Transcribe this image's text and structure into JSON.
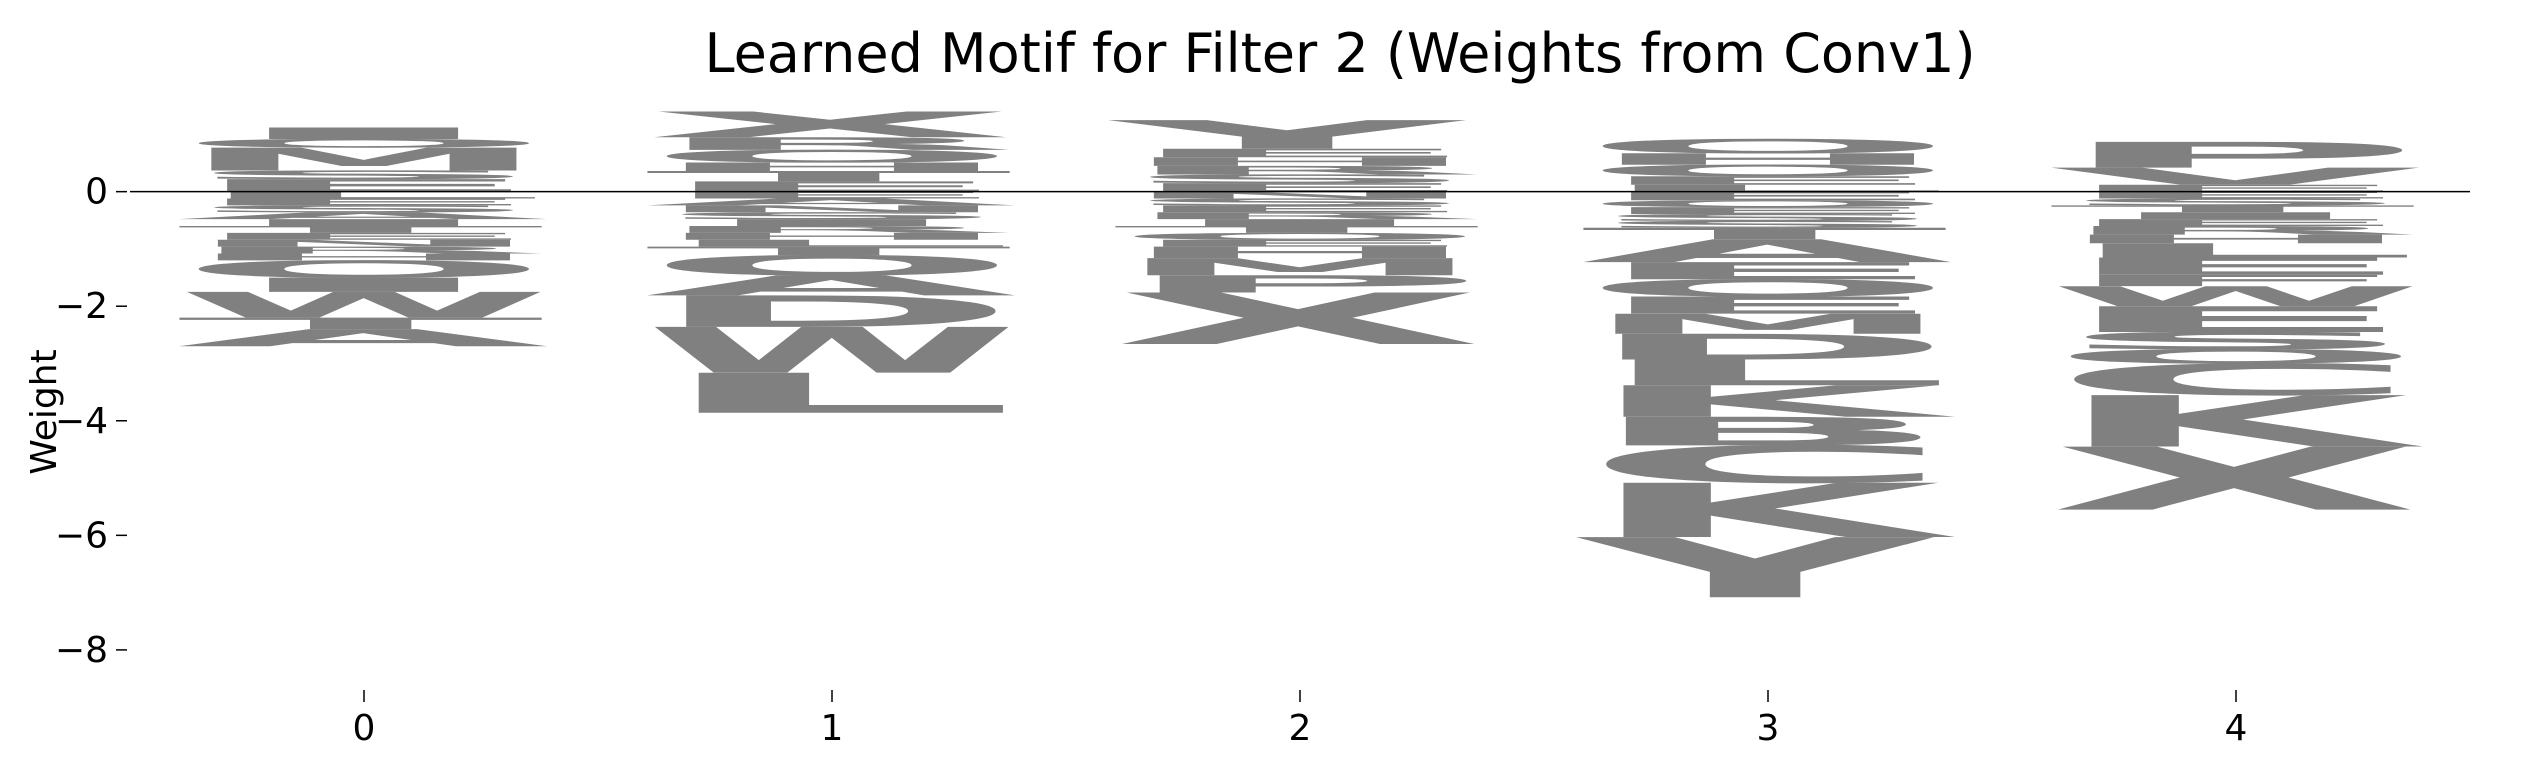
{
  "chart_data": {
    "type": "sequence-logo",
    "title": "Learned Motif for Filter 2 (Weights from Conv1)",
    "xlabel": "",
    "ylabel": "Weight",
    "x_ticks": [
      "0",
      "1",
      "2",
      "3",
      "4"
    ],
    "y_ticks": [
      {
        "value": 0,
        "label": "0"
      },
      {
        "value": -2,
        "label": "−2"
      },
      {
        "value": -4,
        "label": "−4"
      },
      {
        "value": -6,
        "label": "−6"
      },
      {
        "value": -8,
        "label": "−8"
      }
    ],
    "ylim": [
      -8.7,
      1.6
    ],
    "xlim": [
      -0.5,
      4.5
    ],
    "letter_color": "#808080",
    "baseline": 0,
    "positions": [
      {
        "position": 0,
        "positive": [
          {
            "letter": "E",
            "height": 0.22
          },
          {
            "letter": "S",
            "height": 0.15
          },
          {
            "letter": "M",
            "height": 0.4
          },
          {
            "letter": "O",
            "height": 0.15
          },
          {
            "letter": "I",
            "height": 0.2
          }
        ],
        "negative": [
          {
            "letter": "L",
            "height": 0.12
          },
          {
            "letter": "E",
            "height": 0.12
          },
          {
            "letter": "S",
            "height": 0.12
          },
          {
            "letter": "A",
            "height": 0.12
          },
          {
            "letter": "I",
            "height": 0.12
          },
          {
            "letter": "T",
            "height": 0.12
          },
          {
            "letter": "E",
            "height": 0.12
          },
          {
            "letter": "N",
            "height": 0.12
          },
          {
            "letter": "R",
            "height": 0.12
          },
          {
            "letter": "H",
            "height": 0.12
          },
          {
            "letter": "O",
            "height": 0.3
          },
          {
            "letter": "I",
            "height": 0.25
          },
          {
            "letter": "W",
            "height": 0.45
          },
          {
            "letter": "T",
            "height": 0.2
          },
          {
            "letter": "A",
            "height": 0.3
          }
        ]
      },
      {
        "position": 1,
        "positive": [
          {
            "letter": "E",
            "height": 0.18
          },
          {
            "letter": "T",
            "height": 0.18
          },
          {
            "letter": "H",
            "height": 0.15
          },
          {
            "letter": "O",
            "height": 0.22
          },
          {
            "letter": "R",
            "height": 0.22
          },
          {
            "letter": "X",
            "height": 0.45
          }
        ],
        "negative": [
          {
            "letter": "E",
            "height": 0.12
          },
          {
            "letter": "A",
            "height": 0.12
          },
          {
            "letter": "N",
            "height": 0.12
          },
          {
            "letter": "S",
            "height": 0.12
          },
          {
            "letter": "I",
            "height": 0.12
          },
          {
            "letter": "R",
            "height": 0.12
          },
          {
            "letter": "H",
            "height": 0.12
          },
          {
            "letter": "L",
            "height": 0.12
          },
          {
            "letter": "T",
            "height": 0.15
          },
          {
            "letter": "O",
            "height": 0.35
          },
          {
            "letter": "A",
            "height": 0.35
          },
          {
            "letter": "D",
            "height": 0.55
          },
          {
            "letter": "W",
            "height": 0.8
          },
          {
            "letter": "L",
            "height": 0.7
          }
        ]
      },
      {
        "position": 2,
        "positive": [
          {
            "letter": "E",
            "height": 0.15
          },
          {
            "letter": "S",
            "height": 0.15
          },
          {
            "letter": "R",
            "height": 0.15
          },
          {
            "letter": "H",
            "height": 0.15
          },
          {
            "letter": "E",
            "height": 0.15
          },
          {
            "letter": "Y",
            "height": 0.5
          }
        ],
        "negative": [
          {
            "letter": "N",
            "height": 0.12
          },
          {
            "letter": "S",
            "height": 0.12
          },
          {
            "letter": "E",
            "height": 0.12
          },
          {
            "letter": "R",
            "height": 0.12
          },
          {
            "letter": "I",
            "height": 0.12
          },
          {
            "letter": "T",
            "height": 0.12
          },
          {
            "letter": "O",
            "height": 0.12
          },
          {
            "letter": "E",
            "height": 0.12
          },
          {
            "letter": "H",
            "height": 0.2
          },
          {
            "letter": "M",
            "height": 0.3
          },
          {
            "letter": "P",
            "height": 0.3
          },
          {
            "letter": "X",
            "height": 0.9
          }
        ]
      },
      {
        "position": 3,
        "positive": [
          {
            "letter": "L",
            "height": 0.12
          },
          {
            "letter": "E",
            "height": 0.15
          },
          {
            "letter": "O",
            "height": 0.2
          },
          {
            "letter": "H",
            "height": 0.2
          },
          {
            "letter": "O",
            "height": 0.25
          }
        ],
        "negative": [
          {
            "letter": "E",
            "height": 0.15
          },
          {
            "letter": "O",
            "height": 0.12
          },
          {
            "letter": "E",
            "height": 0.12
          },
          {
            "letter": "S",
            "height": 0.12
          },
          {
            "letter": "S",
            "height": 0.12
          },
          {
            "letter": "T",
            "height": 0.2
          },
          {
            "letter": "A",
            "height": 0.4
          },
          {
            "letter": "E",
            "height": 0.3
          },
          {
            "letter": "O",
            "height": 0.3
          },
          {
            "letter": "E",
            "height": 0.3
          },
          {
            "letter": "M",
            "height": 0.35
          },
          {
            "letter": "D",
            "height": 0.45
          },
          {
            "letter": "L",
            "height": 0.45
          },
          {
            "letter": "K",
            "height": 0.55
          },
          {
            "letter": "B",
            "height": 0.5
          },
          {
            "letter": "C",
            "height": 0.65
          },
          {
            "letter": "K",
            "height": 0.95
          },
          {
            "letter": "Y",
            "height": 1.05
          }
        ]
      },
      {
        "position": 4,
        "positive": [
          {
            "letter": "E",
            "height": 0.12
          },
          {
            "letter": "V",
            "height": 0.3
          },
          {
            "letter": "P",
            "height": 0.45
          }
        ],
        "negative": [
          {
            "letter": "E",
            "height": 0.12
          },
          {
            "letter": "S",
            "height": 0.12
          },
          {
            "letter": "T",
            "height": 0.12
          },
          {
            "letter": "I",
            "height": 0.12
          },
          {
            "letter": "E",
            "height": 0.12
          },
          {
            "letter": "R",
            "height": 0.15
          },
          {
            "letter": "H",
            "height": 0.15
          },
          {
            "letter": "L",
            "height": 0.25
          },
          {
            "letter": "E",
            "height": 0.3
          },
          {
            "letter": "F",
            "height": 0.2
          },
          {
            "letter": "W",
            "height": 0.35
          },
          {
            "letter": "E",
            "height": 0.45
          },
          {
            "letter": "S",
            "height": 0.3
          },
          {
            "letter": "O",
            "height": 0.25
          },
          {
            "letter": "C",
            "height": 0.55
          },
          {
            "letter": "K",
            "height": 0.9
          },
          {
            "letter": "X",
            "height": 1.1
          }
        ]
      }
    ]
  }
}
